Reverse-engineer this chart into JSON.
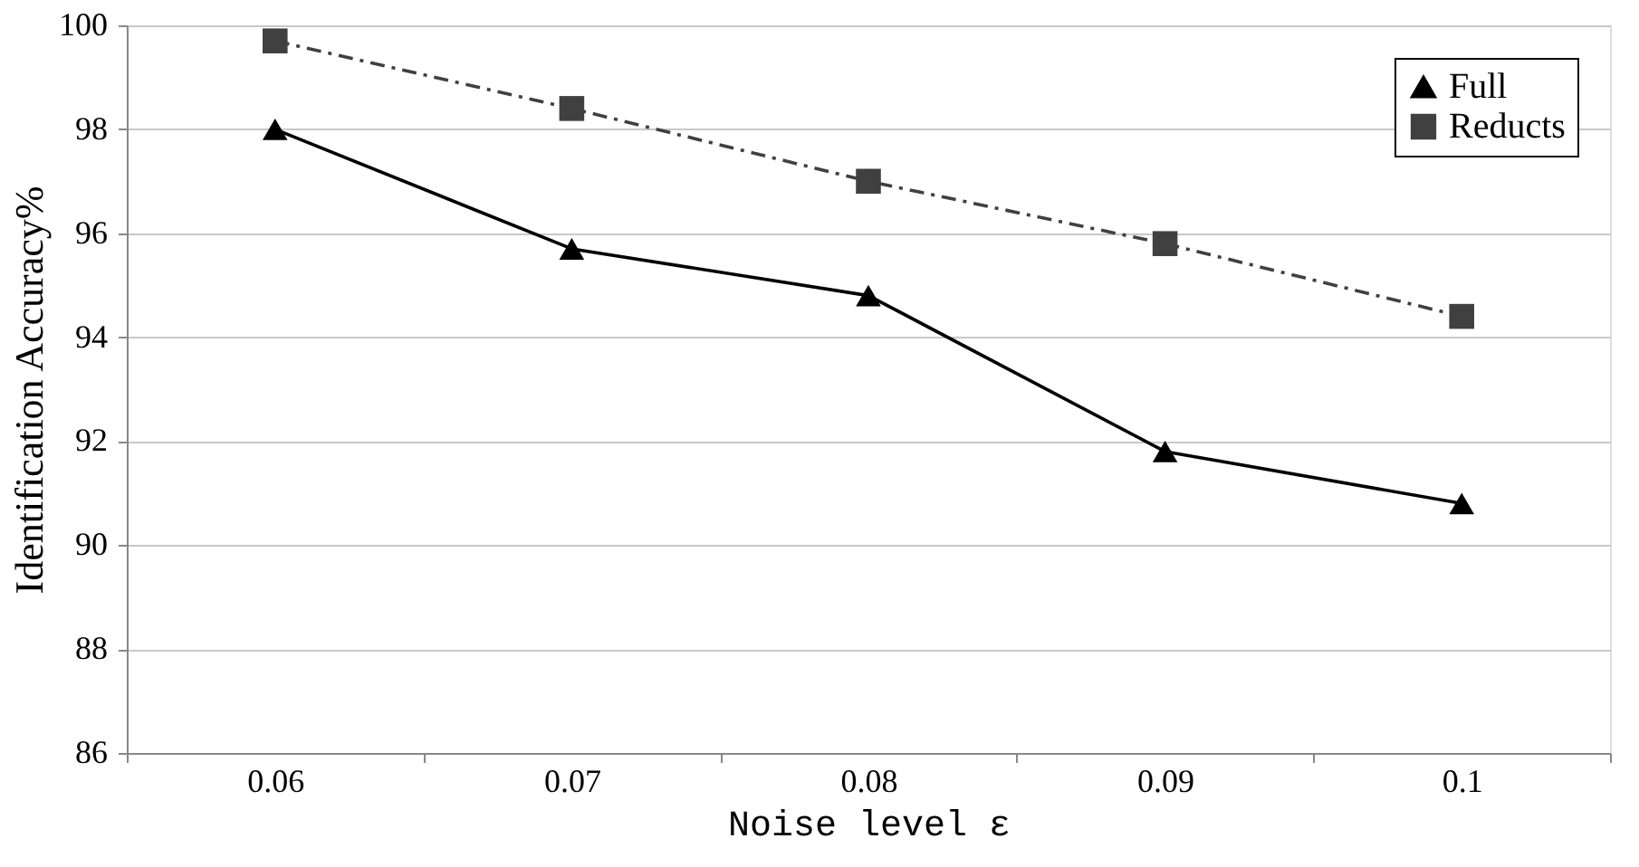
{
  "chart_data": {
    "type": "line",
    "xlabel": "Noise level ε",
    "ylabel": "Identification Accuracy%",
    "categories": [
      "0.06",
      "0.07",
      "0.08",
      "0.09",
      "0.1"
    ],
    "series": [
      {
        "name": "Full",
        "color": "#000000",
        "marker": "triangle",
        "line_style": "solid",
        "values": [
          98.0,
          95.7,
          94.8,
          91.8,
          90.8
        ]
      },
      {
        "name": "Reducts",
        "color": "#404040",
        "marker": "square",
        "line_style": "dashdot",
        "values": [
          99.7,
          98.4,
          97.0,
          95.8,
          94.4
        ]
      }
    ],
    "ylim": [
      86,
      100
    ],
    "yticks": [
      86,
      88,
      90,
      92,
      94,
      96,
      98,
      100
    ],
    "grid": "y",
    "legend": "top right"
  }
}
